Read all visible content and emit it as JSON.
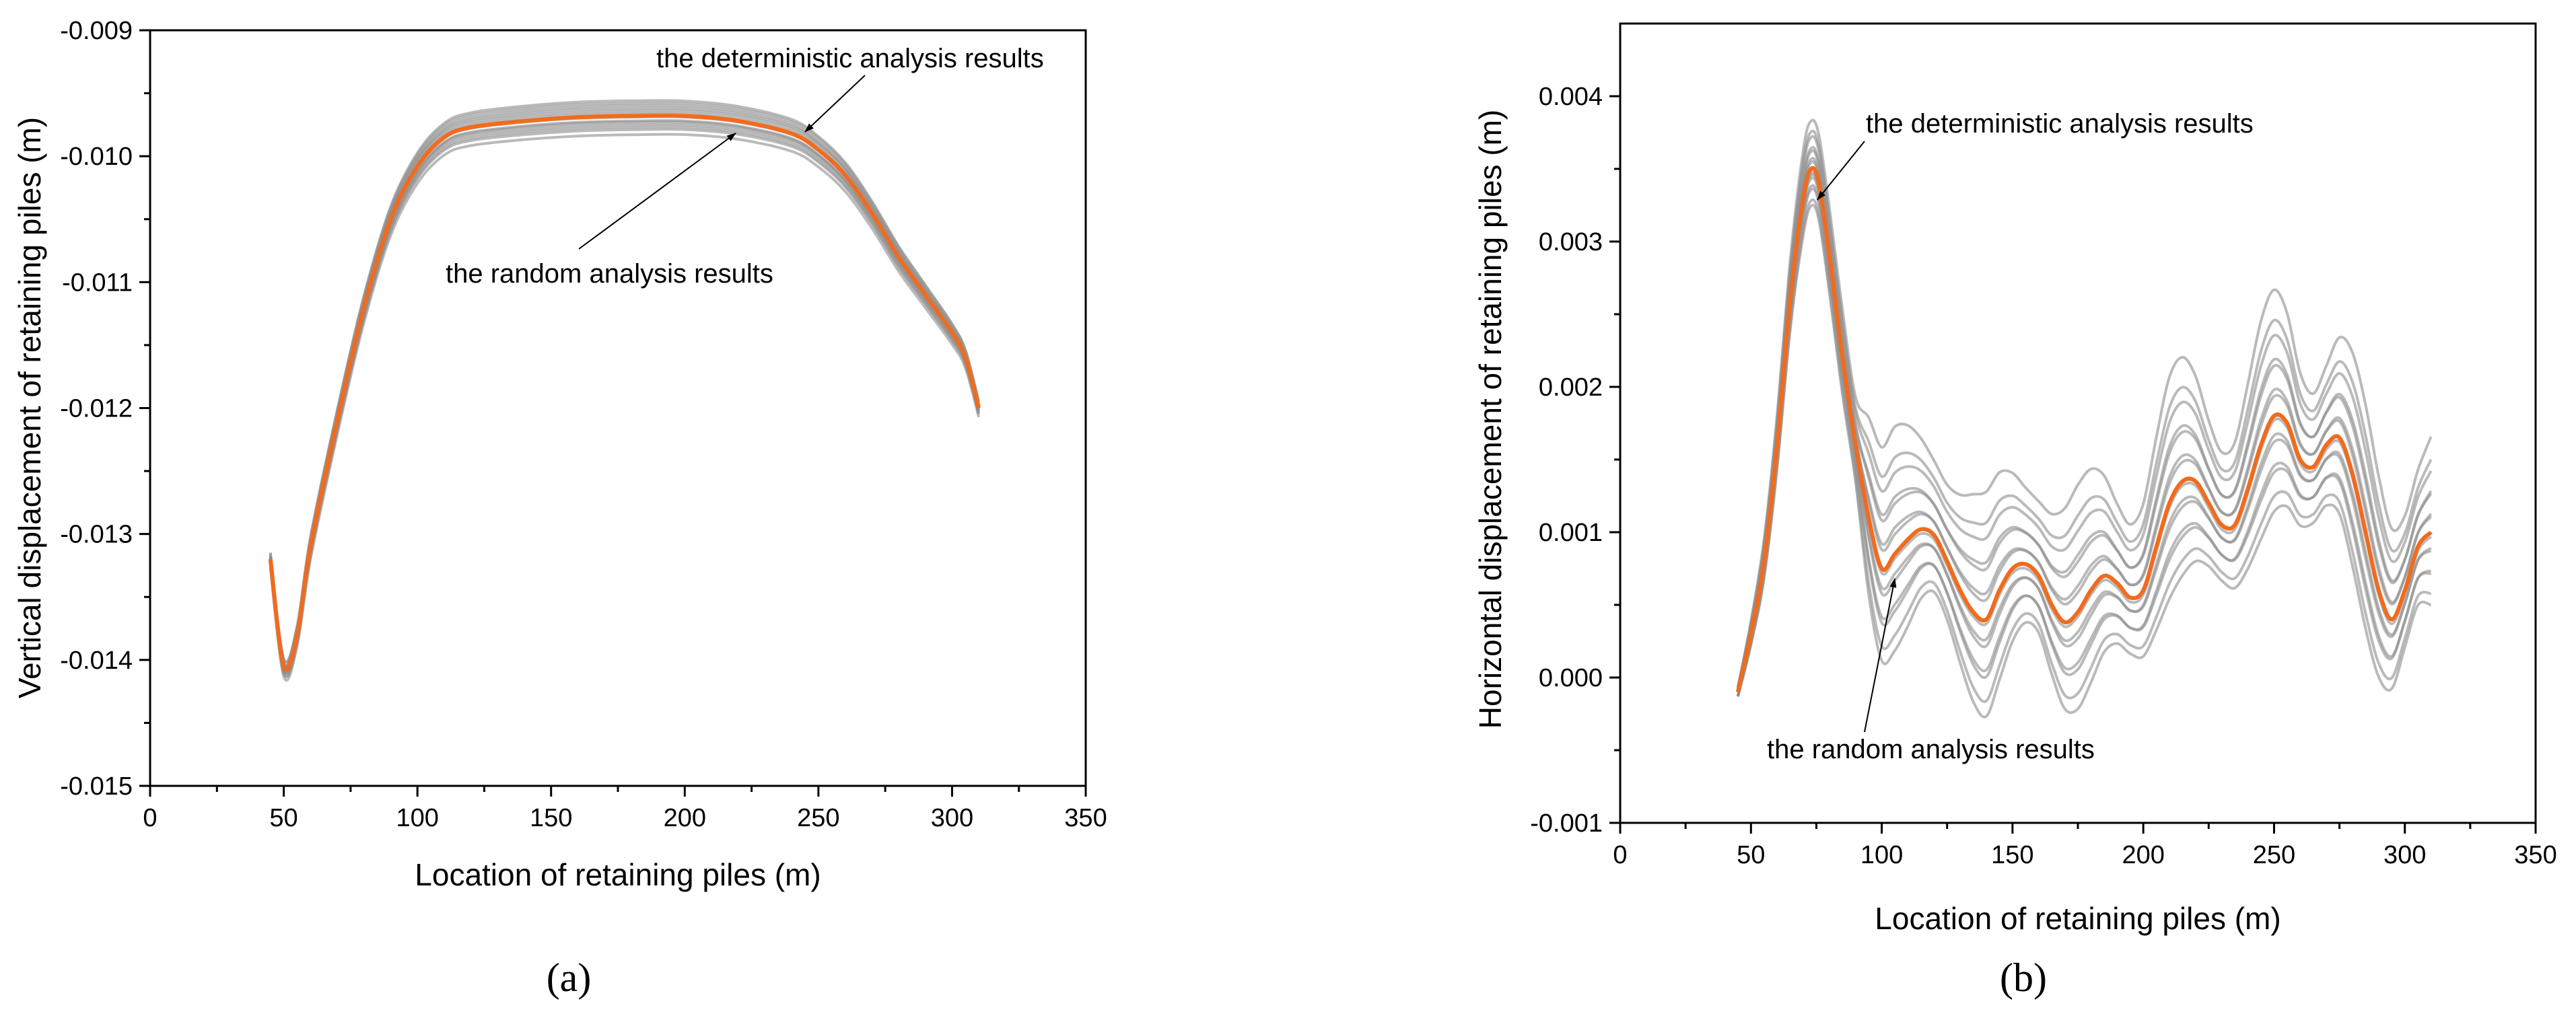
{
  "chart_data": [
    {
      "type": "line",
      "panel_label": "(a)",
      "xlabel": "Location of retaining piles (m)",
      "ylabel": "Vertical displacement of retaining piles (m)",
      "xlim": [
        0,
        350
      ],
      "ylim": [
        -0.015,
        -0.009
      ],
      "xticks": [
        0,
        50,
        100,
        150,
        200,
        250,
        300,
        350
      ],
      "xtick_labels": [
        "0",
        "50",
        "100",
        "150",
        "200",
        "250",
        "300",
        "350"
      ],
      "yticks": [
        -0.015,
        -0.014,
        -0.013,
        -0.012,
        -0.011,
        -0.01,
        -0.009
      ],
      "ytick_labels": [
        "-0.015",
        "-0.014",
        "-0.013",
        "-0.012",
        "-0.011",
        "-0.010",
        "-0.009"
      ],
      "x": [
        45,
        50,
        55,
        60,
        70,
        80,
        90,
        100,
        110,
        120,
        140,
        160,
        180,
        200,
        220,
        240,
        250,
        260,
        270,
        280,
        290,
        300,
        305,
        310
      ],
      "series": [
        {
          "name": "the deterministic analysis results",
          "values": [
            -0.0132,
            -0.01405,
            -0.0138,
            -0.0131,
            -0.0121,
            -0.0112,
            -0.0105,
            -0.01008,
            -0.00985,
            -0.00977,
            -0.00972,
            -0.00969,
            -0.00968,
            -0.00968,
            -0.00972,
            -0.00982,
            -0.00995,
            -0.01015,
            -0.01045,
            -0.0108,
            -0.0111,
            -0.0114,
            -0.0116,
            -0.012
          ]
        }
      ],
      "random_series_offsets": [
        -0.00013,
        -0.00011,
        -9e-05,
        -7e-05,
        -5e-05,
        -3e-05,
        -2e-05,
        0.0,
        2e-05,
        4e-05,
        6e-05,
        8e-05,
        0.0001,
        0.00012
      ],
      "annotations": [
        {
          "text": "the deterministic analysis results",
          "points_to": {
            "x": 245,
            "y": -0.00978
          }
        },
        {
          "text": "the random analysis results",
          "points_to": {
            "x": 220,
            "y": -0.00972
          }
        }
      ]
    },
    {
      "type": "line",
      "panel_label": "(b)",
      "xlabel": "Location of retaining piles (m)",
      "ylabel": "Horizontal displacement of retaining piles (m)",
      "xlim": [
        0,
        350
      ],
      "ylim": [
        -0.001,
        0.0045
      ],
      "xticks": [
        0,
        50,
        100,
        150,
        200,
        250,
        300,
        350
      ],
      "xtick_labels": [
        "0",
        "50",
        "100",
        "150",
        "200",
        "250",
        "300",
        "350"
      ],
      "yticks": [
        -0.001,
        0.0,
        0.001,
        0.002,
        0.003,
        0.004
      ],
      "ytick_labels": [
        "-0.001",
        "0.000",
        "0.001",
        "0.002",
        "0.003",
        "0.004"
      ],
      "x": [
        45,
        50,
        55,
        60,
        65,
        70,
        73,
        76,
        80,
        85,
        90,
        95,
        100,
        105,
        110,
        115,
        120,
        125,
        130,
        135,
        140,
        145,
        150,
        155,
        160,
        165,
        170,
        175,
        180,
        185,
        190,
        195,
        200,
        205,
        210,
        215,
        220,
        225,
        230,
        235,
        240,
        245,
        250,
        255,
        260,
        265,
        270,
        275,
        280,
        285,
        290,
        295,
        300,
        305,
        310
      ],
      "series": [
        {
          "name": "the deterministic analysis results",
          "values": [
            -0.0001,
            0.0003,
            0.0008,
            0.0016,
            0.0026,
            0.0033,
            0.0035,
            0.0034,
            0.0029,
            0.0022,
            0.0016,
            0.0011,
            0.00075,
            0.00085,
            0.00095,
            0.00102,
            0.00098,
            0.0008,
            0.0006,
            0.00045,
            0.0004,
            0.0006,
            0.00075,
            0.00078,
            0.0007,
            0.0005,
            0.00038,
            0.00045,
            0.0006,
            0.0007,
            0.00065,
            0.00055,
            0.0006,
            0.0009,
            0.0012,
            0.00135,
            0.00135,
            0.0012,
            0.00105,
            0.00105,
            0.0013,
            0.0016,
            0.0018,
            0.00175,
            0.0015,
            0.00145,
            0.0016,
            0.00165,
            0.0014,
            0.001,
            0.0006,
            0.0004,
            0.0006,
            0.0009,
            0.001
          ]
        }
      ],
      "random_series_scales": [
        0.0,
        0.15,
        0.3,
        0.45,
        0.6,
        0.75,
        -0.15,
        -0.3,
        -0.45,
        -0.6,
        -0.75,
        0.9,
        -0.9,
        1.2
      ],
      "annotations": [
        {
          "text": "the deterministic analysis results",
          "points_to": {
            "x": 75,
            "y": 0.00325
          }
        },
        {
          "text": "the random analysis results",
          "points_to": {
            "x": 122,
            "y": 0.00072
          }
        }
      ]
    }
  ]
}
